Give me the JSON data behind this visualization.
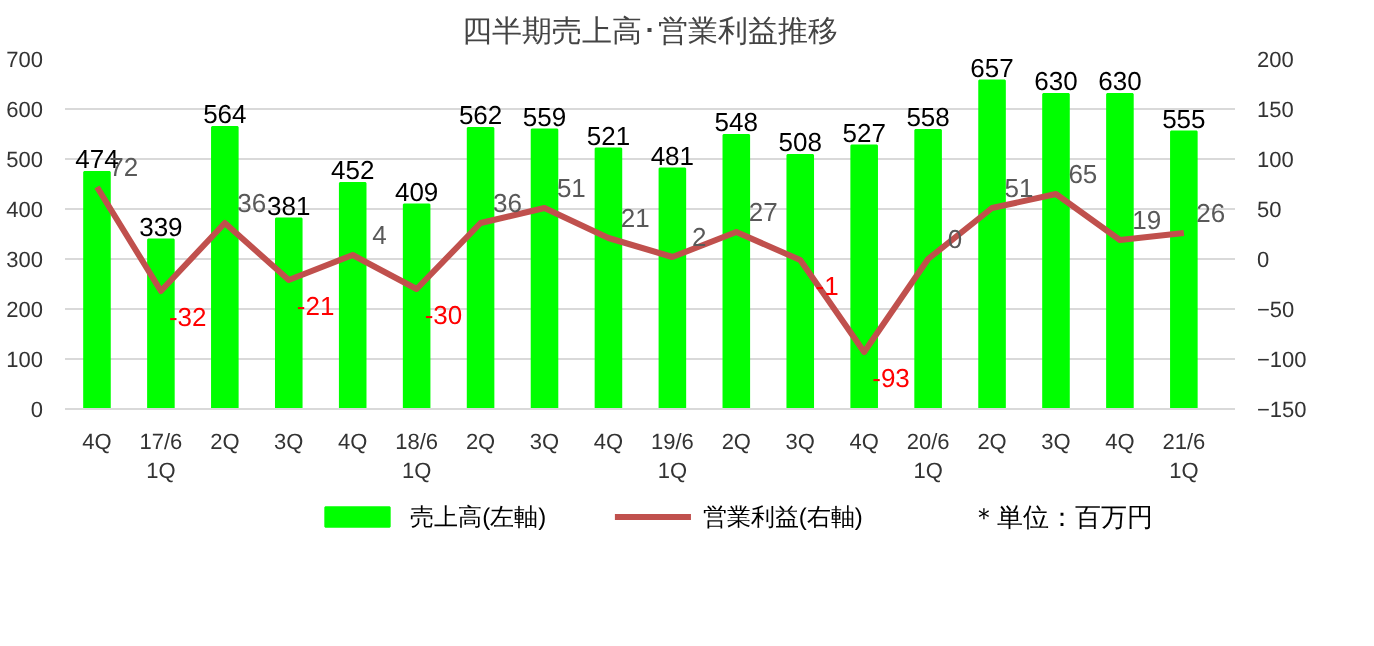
{
  "chart_data": {
    "type": "bar",
    "title": "四半期売上高･営業利益推移",
    "categories": [
      "4Q",
      "17/6\n1Q",
      "2Q",
      "3Q",
      "4Q",
      "18/6\n1Q",
      "2Q",
      "3Q",
      "4Q",
      "19/6\n1Q",
      "2Q",
      "3Q",
      "4Q",
      "20/6\n1Q",
      "2Q",
      "3Q",
      "4Q",
      "21/6\n1Q"
    ],
    "series": [
      {
        "name": "売上高(左軸)",
        "color": "#00ff00",
        "values": [
          474,
          339,
          564,
          381,
          452,
          409,
          562,
          559,
          521,
          481,
          548,
          508,
          527,
          558,
          657,
          630,
          630,
          555
        ]
      },
      {
        "name": "営業利益(右軸)",
        "type": "line",
        "axis": "y2",
        "color": "#c0504d",
        "values": [
          72,
          -32,
          36,
          -21,
          4,
          -30,
          36,
          51,
          21,
          2,
          27,
          -1,
          -93,
          0,
          51,
          65,
          19,
          26
        ]
      }
    ],
    "ylim": [
      0,
      700
    ],
    "yticks": [
      0,
      100,
      200,
      300,
      400,
      500,
      600,
      700
    ],
    "y2lim": [
      -150,
      200
    ],
    "y2ticks": [
      -150,
      -100,
      -50,
      0,
      50,
      100,
      150,
      200
    ],
    "data_labels": true,
    "grid": "y",
    "legend": "bottom",
    "marker": "none",
    "line_style": "solid",
    "annotations": [
      "＊単位：百万円"
    ]
  }
}
